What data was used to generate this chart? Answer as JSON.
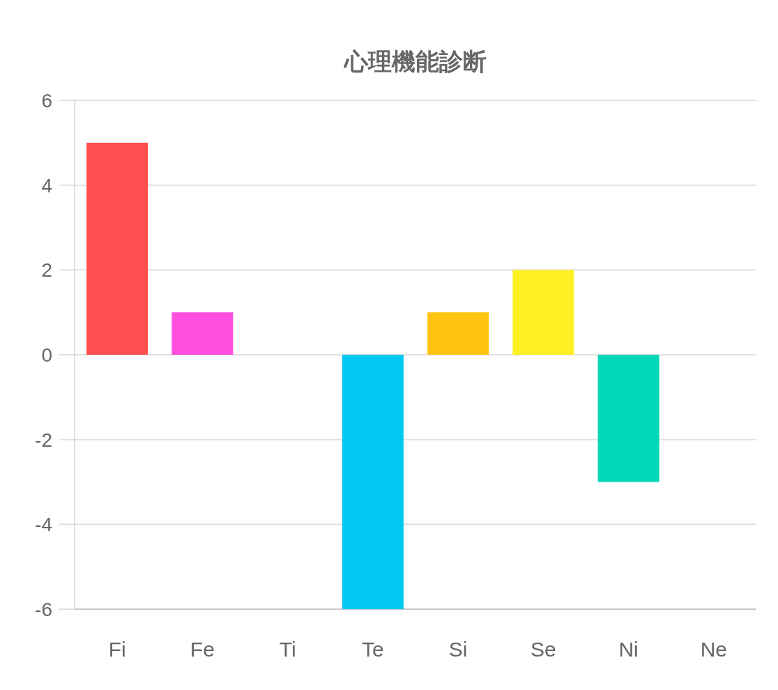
{
  "chart_data": {
    "type": "bar",
    "title": "心理機能診断",
    "categories": [
      "Fi",
      "Fe",
      "Ti",
      "Te",
      "Si",
      "Se",
      "Ni",
      "Ne"
    ],
    "values": [
      5,
      1,
      0,
      -6,
      1,
      2,
      -3,
      0
    ],
    "colors": [
      "#ff4f4f",
      "#ff4fdf",
      null,
      "#00c8f0",
      "#ffc311",
      "#fff024",
      "#00d8b8",
      null
    ],
    "ylim": [
      -6,
      6
    ],
    "yticks": [
      -6,
      -4,
      -2,
      0,
      2,
      4,
      6
    ],
    "grid": "y"
  }
}
